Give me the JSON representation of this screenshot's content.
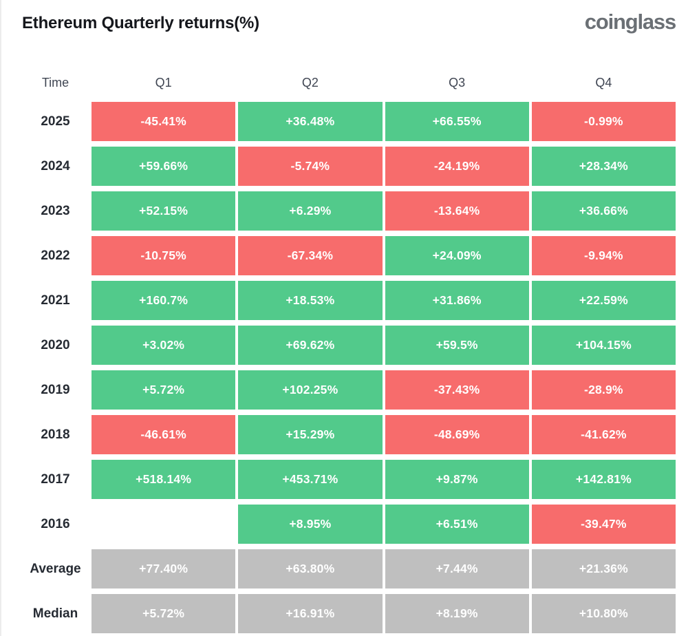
{
  "header": {
    "title": "Ethereum Quarterly returns(%)",
    "logo": "coinglass"
  },
  "colors": {
    "green": "#52ca8b",
    "red": "#f76c6c",
    "gray": "#bfbfbf",
    "cell_text": "#ffffff"
  },
  "table": {
    "columns": [
      "Time",
      "Q1",
      "Q2",
      "Q3",
      "Q4"
    ],
    "rows": [
      {
        "label": "2025",
        "cells": [
          {
            "value": "-45.41%",
            "color": "red"
          },
          {
            "value": "+36.48%",
            "color": "green"
          },
          {
            "value": "+66.55%",
            "color": "green"
          },
          {
            "value": "-0.99%",
            "color": "red"
          }
        ]
      },
      {
        "label": "2024",
        "cells": [
          {
            "value": "+59.66%",
            "color": "green"
          },
          {
            "value": "-5.74%",
            "color": "red"
          },
          {
            "value": "-24.19%",
            "color": "red"
          },
          {
            "value": "+28.34%",
            "color": "green"
          }
        ]
      },
      {
        "label": "2023",
        "cells": [
          {
            "value": "+52.15%",
            "color": "green"
          },
          {
            "value": "+6.29%",
            "color": "green"
          },
          {
            "value": "-13.64%",
            "color": "red"
          },
          {
            "value": "+36.66%",
            "color": "green"
          }
        ]
      },
      {
        "label": "2022",
        "cells": [
          {
            "value": "-10.75%",
            "color": "red"
          },
          {
            "value": "-67.34%",
            "color": "red"
          },
          {
            "value": "+24.09%",
            "color": "green"
          },
          {
            "value": "-9.94%",
            "color": "red"
          }
        ]
      },
      {
        "label": "2021",
        "cells": [
          {
            "value": "+160.7%",
            "color": "green"
          },
          {
            "value": "+18.53%",
            "color": "green"
          },
          {
            "value": "+31.86%",
            "color": "green"
          },
          {
            "value": "+22.59%",
            "color": "green"
          }
        ]
      },
      {
        "label": "2020",
        "cells": [
          {
            "value": "+3.02%",
            "color": "green"
          },
          {
            "value": "+69.62%",
            "color": "green"
          },
          {
            "value": "+59.5%",
            "color": "green"
          },
          {
            "value": "+104.15%",
            "color": "green"
          }
        ]
      },
      {
        "label": "2019",
        "cells": [
          {
            "value": "+5.72%",
            "color": "green"
          },
          {
            "value": "+102.25%",
            "color": "green"
          },
          {
            "value": "-37.43%",
            "color": "red"
          },
          {
            "value": "-28.9%",
            "color": "red"
          }
        ]
      },
      {
        "label": "2018",
        "cells": [
          {
            "value": "-46.61%",
            "color": "red"
          },
          {
            "value": "+15.29%",
            "color": "green"
          },
          {
            "value": "-48.69%",
            "color": "red"
          },
          {
            "value": "-41.62%",
            "color": "red"
          }
        ]
      },
      {
        "label": "2017",
        "cells": [
          {
            "value": "+518.14%",
            "color": "green"
          },
          {
            "value": "+453.71%",
            "color": "green"
          },
          {
            "value": "+9.87%",
            "color": "green"
          },
          {
            "value": "+142.81%",
            "color": "green"
          }
        ]
      },
      {
        "label": "2016",
        "cells": [
          {
            "value": "",
            "color": "empty"
          },
          {
            "value": "+8.95%",
            "color": "green"
          },
          {
            "value": "+6.51%",
            "color": "green"
          },
          {
            "value": "-39.47%",
            "color": "red"
          }
        ]
      },
      {
        "label": "Average",
        "cells": [
          {
            "value": "+77.40%",
            "color": "gray"
          },
          {
            "value": "+63.80%",
            "color": "gray"
          },
          {
            "value": "+7.44%",
            "color": "gray"
          },
          {
            "value": "+21.36%",
            "color": "gray"
          }
        ]
      },
      {
        "label": "Median",
        "cells": [
          {
            "value": "+5.72%",
            "color": "gray"
          },
          {
            "value": "+16.91%",
            "color": "gray"
          },
          {
            "value": "+8.19%",
            "color": "gray"
          },
          {
            "value": "+10.80%",
            "color": "gray"
          }
        ]
      }
    ]
  },
  "chart_data": {
    "type": "table",
    "title": "Ethereum Quarterly returns(%)",
    "columns": [
      "Q1",
      "Q2",
      "Q3",
      "Q4"
    ],
    "row_labels": [
      "2025",
      "2024",
      "2023",
      "2022",
      "2021",
      "2020",
      "2019",
      "2018",
      "2017",
      "2016",
      "Average",
      "Median"
    ],
    "values_percent": [
      [
        -45.41,
        36.48,
        66.55,
        -0.99
      ],
      [
        59.66,
        -5.74,
        -24.19,
        28.34
      ],
      [
        52.15,
        6.29,
        -13.64,
        36.66
      ],
      [
        -10.75,
        -67.34,
        24.09,
        -9.94
      ],
      [
        160.7,
        18.53,
        31.86,
        22.59
      ],
      [
        3.02,
        69.62,
        59.5,
        104.15
      ],
      [
        5.72,
        102.25,
        -37.43,
        -28.9
      ],
      [
        -46.61,
        15.29,
        -48.69,
        -41.62
      ],
      [
        518.14,
        453.71,
        9.87,
        142.81
      ],
      [
        null,
        8.95,
        6.51,
        -39.47
      ],
      [
        77.4,
        63.8,
        7.44,
        21.36
      ],
      [
        5.72,
        16.91,
        8.19,
        10.8
      ]
    ],
    "color_rule": "positive=green, negative=red, summary rows (Average/Median)=gray, missing=blank",
    "legend_position": "none",
    "grid": false
  }
}
